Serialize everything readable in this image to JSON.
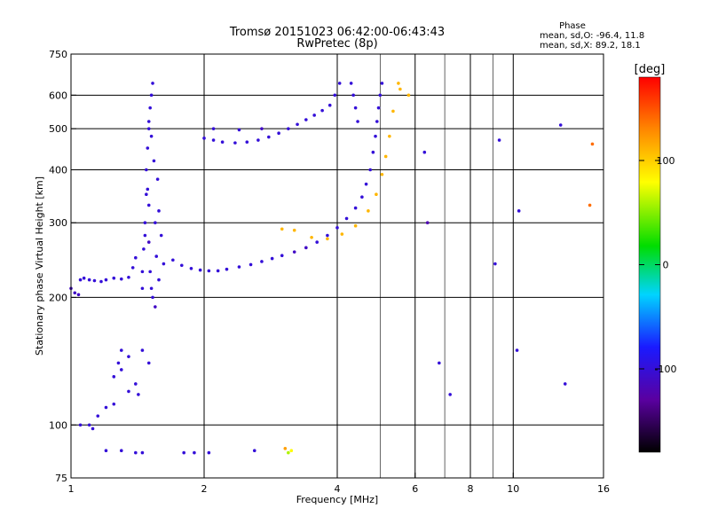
{
  "chart_data": {
    "type": "scatter",
    "title": "Tromsø 20151023 06:42:00-06:43:43",
    "subtitle": "RwPretec (8p)",
    "xlabel": "Frequency [MHz]",
    "ylabel": "Stationary phase Virtual Height [km]",
    "x_scale": "log",
    "y_scale": "log",
    "xlim": [
      1,
      16
    ],
    "ylim": [
      75,
      750
    ],
    "x_ticks": [
      1,
      2,
      4,
      6,
      8,
      10,
      16
    ],
    "x_tick_labels": [
      "1",
      "2",
      "4",
      "6",
      "8",
      "10",
      "16"
    ],
    "y_ticks": [
      75,
      100,
      200,
      300,
      400,
      500,
      600,
      750
    ],
    "y_tick_labels": [
      "75",
      "100",
      "200",
      "300",
      "400",
      "500",
      "600",
      "750"
    ],
    "grid": true,
    "stats": {
      "heading": "Phase",
      "line_o": "mean, sd,O: -96.4, 11.8",
      "line_x": "mean, sd,X:  89.2, 18.1"
    },
    "colorbar": {
      "label": "[deg]",
      "range": [
        -180,
        180
      ],
      "ticks": [
        100,
        0,
        -100
      ],
      "tick_labels": [
        "100",
        "0",
        "-100"
      ]
    },
    "series": [
      {
        "points": [
          [
            1.0,
            210,
            -110
          ],
          [
            1.02,
            205,
            -110
          ],
          [
            1.04,
            203,
            -110
          ],
          [
            1.05,
            220,
            -100
          ],
          [
            1.07,
            222,
            -100
          ],
          [
            1.1,
            220,
            -100
          ],
          [
            1.13,
            219,
            -100
          ],
          [
            1.17,
            218,
            -100
          ],
          [
            1.2,
            220,
            -100
          ],
          [
            1.25,
            222,
            -100
          ],
          [
            1.3,
            221,
            -100
          ],
          [
            1.35,
            223,
            -100
          ],
          [
            1.38,
            235,
            -100
          ],
          [
            1.4,
            248,
            -100
          ]
        ]
      },
      {
        "points": [
          [
            1.45,
            230,
            -100
          ],
          [
            1.46,
            260,
            -100
          ],
          [
            1.47,
            300,
            -100
          ],
          [
            1.48,
            350,
            -100
          ],
          [
            1.48,
            400,
            -100
          ],
          [
            1.49,
            450,
            -100
          ],
          [
            1.5,
            500,
            -100
          ],
          [
            1.5,
            520,
            -100
          ],
          [
            1.51,
            560,
            -100
          ],
          [
            1.52,
            600,
            -100
          ],
          [
            1.53,
            640,
            -100
          ],
          [
            1.5,
            270,
            -110
          ],
          [
            1.51,
            230,
            -100
          ],
          [
            1.52,
            210,
            -100
          ],
          [
            1.53,
            200,
            -100
          ],
          [
            1.55,
            300,
            -100
          ],
          [
            1.56,
            250,
            -100
          ],
          [
            1.54,
            420,
            -100
          ],
          [
            1.57,
            380,
            -100
          ],
          [
            1.58,
            320,
            -100
          ],
          [
            1.6,
            280,
            -100
          ],
          [
            1.55,
            190,
            -110
          ],
          [
            1.58,
            220,
            -100
          ],
          [
            1.62,
            240,
            -100
          ],
          [
            1.5,
            330,
            -100
          ],
          [
            1.52,
            480,
            -100
          ],
          [
            1.47,
            280,
            -100
          ],
          [
            1.49,
            360,
            -100
          ],
          [
            1.45,
            210,
            -100
          ]
        ]
      },
      {
        "points": [
          [
            1.7,
            245,
            -100
          ],
          [
            1.78,
            238,
            -100
          ],
          [
            1.87,
            234,
            -100
          ],
          [
            1.96,
            232,
            -100
          ],
          [
            2.05,
            231,
            -100
          ],
          [
            2.15,
            231,
            -100
          ],
          [
            2.25,
            233,
            -100
          ],
          [
            2.4,
            236,
            -100
          ],
          [
            2.55,
            239,
            -100
          ],
          [
            2.7,
            243,
            -100
          ],
          [
            2.85,
            247,
            -100
          ],
          [
            3.0,
            251,
            -100
          ],
          [
            3.2,
            256,
            -110
          ],
          [
            3.4,
            262,
            -110
          ],
          [
            3.6,
            270,
            -100
          ],
          [
            3.8,
            280,
            -100
          ],
          [
            4.0,
            292,
            -100
          ],
          [
            4.2,
            307,
            -100
          ],
          [
            4.4,
            325,
            -100
          ],
          [
            4.55,
            345,
            -100
          ],
          [
            4.65,
            370,
            -100
          ],
          [
            4.75,
            400,
            -100
          ],
          [
            4.82,
            440,
            -100
          ],
          [
            4.88,
            480,
            -100
          ],
          [
            4.92,
            520,
            -100
          ],
          [
            4.96,
            560,
            -100
          ],
          [
            5.0,
            600,
            -100
          ],
          [
            5.05,
            640,
            -100
          ],
          [
            4.3,
            640,
            -100
          ],
          [
            4.35,
            600,
            -100
          ],
          [
            4.4,
            560,
            -100
          ],
          [
            4.45,
            520,
            -100
          ]
        ]
      },
      {
        "points": [
          [
            2.0,
            475,
            -100
          ],
          [
            2.1,
            470,
            -100
          ],
          [
            2.2,
            465,
            -100
          ],
          [
            2.35,
            463,
            -100
          ],
          [
            2.5,
            465,
            -100
          ],
          [
            2.65,
            470,
            -100
          ],
          [
            2.8,
            478,
            -100
          ],
          [
            2.95,
            488,
            -100
          ],
          [
            3.1,
            500,
            -100
          ],
          [
            3.25,
            512,
            -100
          ],
          [
            3.4,
            525,
            -100
          ],
          [
            3.55,
            538,
            -100
          ],
          [
            3.7,
            552,
            -100
          ],
          [
            3.85,
            568,
            -100
          ],
          [
            3.95,
            600,
            -100
          ],
          [
            4.05,
            640,
            -100
          ],
          [
            2.1,
            500,
            -100
          ],
          [
            2.4,
            497,
            -100
          ],
          [
            2.7,
            500,
            -110
          ]
        ]
      },
      {
        "points": [
          [
            3.0,
            290,
            110
          ],
          [
            3.2,
            288,
            110
          ],
          [
            3.5,
            277,
            110
          ],
          [
            3.8,
            275,
            110
          ],
          [
            4.1,
            282,
            110
          ],
          [
            4.4,
            295,
            110
          ],
          [
            4.7,
            320,
            110
          ],
          [
            4.9,
            350,
            110
          ],
          [
            5.05,
            390,
            110
          ],
          [
            5.15,
            430,
            110
          ],
          [
            5.25,
            480,
            110
          ],
          [
            5.35,
            550,
            110
          ],
          [
            5.5,
            640,
            110
          ],
          [
            5.55,
            620,
            110
          ]
        ]
      },
      {
        "points": [
          [
            1.25,
            130,
            -100
          ],
          [
            1.3,
            135,
            -100
          ],
          [
            1.35,
            145,
            -100
          ],
          [
            1.4,
            125,
            -100
          ],
          [
            1.45,
            150,
            -100
          ],
          [
            1.5,
            140,
            -100
          ],
          [
            1.35,
            120,
            -100
          ],
          [
            1.42,
            118,
            -100
          ],
          [
            1.1,
            100,
            -100
          ],
          [
            1.15,
            105,
            -100
          ],
          [
            1.2,
            110,
            -100
          ],
          [
            1.25,
            112,
            -100
          ],
          [
            1.05,
            100,
            -100
          ],
          [
            1.12,
            98,
            -100
          ],
          [
            1.28,
            140,
            -100
          ],
          [
            1.3,
            150,
            -100
          ]
        ]
      },
      {
        "points": [
          [
            1.2,
            87,
            -100
          ],
          [
            1.3,
            87,
            -100
          ],
          [
            1.4,
            86,
            -100
          ],
          [
            1.45,
            86,
            -100
          ],
          [
            1.8,
            86,
            -100
          ],
          [
            1.9,
            86,
            -100
          ],
          [
            2.05,
            86,
            -100
          ],
          [
            2.6,
            87,
            -100
          ],
          [
            3.05,
            88,
            120
          ],
          [
            3.1,
            86,
            60
          ],
          [
            3.15,
            87,
            80
          ]
        ]
      },
      {
        "points": [
          [
            5.8,
            600,
            110
          ],
          [
            6.3,
            440,
            -100
          ],
          [
            6.4,
            300,
            -120
          ],
          [
            6.8,
            140,
            -100
          ],
          [
            7.2,
            118,
            -100
          ],
          [
            9.3,
            470,
            -100
          ],
          [
            10.3,
            320,
            -100
          ],
          [
            9.1,
            240,
            -100
          ],
          [
            10.2,
            150,
            -100
          ],
          [
            12.8,
            510,
            -100
          ],
          [
            13.1,
            125,
            -100
          ],
          [
            15.1,
            460,
            140
          ],
          [
            14.9,
            330,
            140
          ]
        ]
      }
    ]
  }
}
